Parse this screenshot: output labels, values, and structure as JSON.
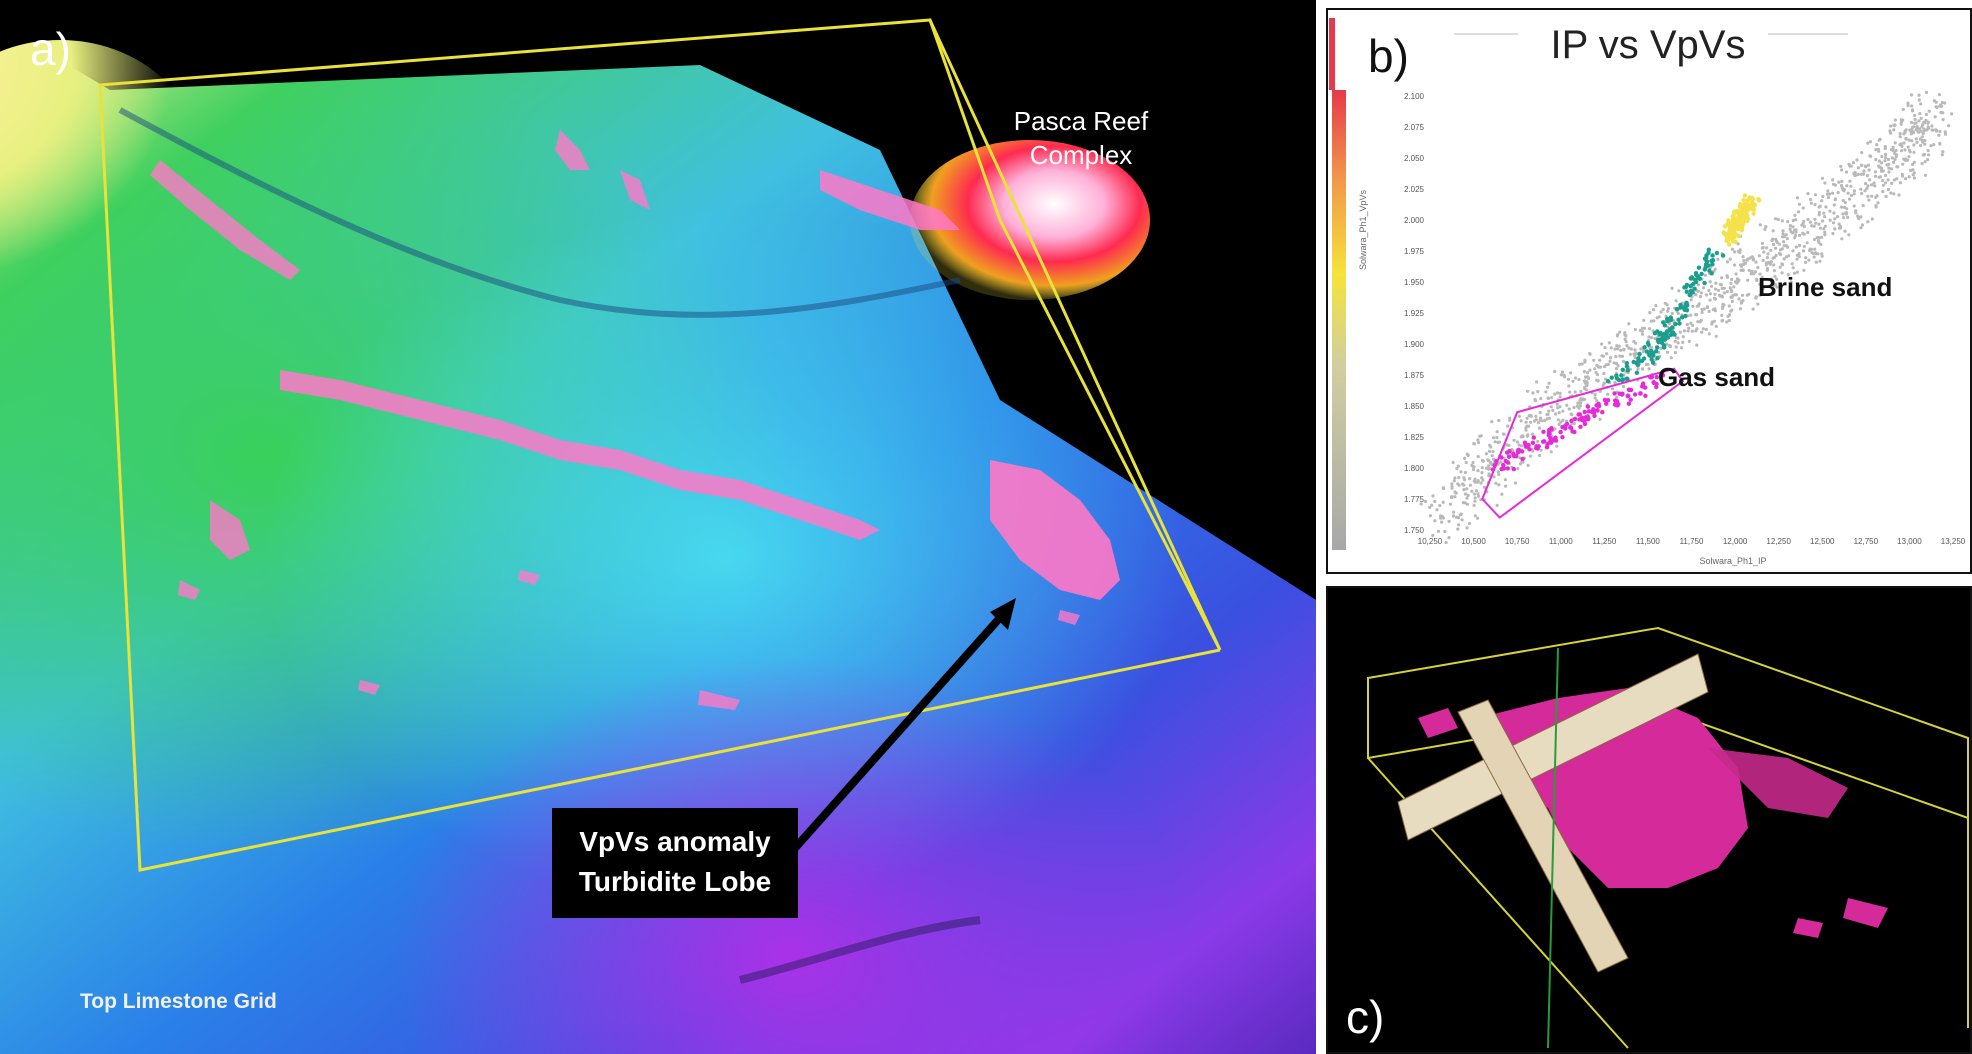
{
  "panel_a": {
    "letter": "a)",
    "reef_label_line1": "Pasca Reef",
    "reef_label_line2": "Complex",
    "anomaly_label_line1": "VpVs anomaly",
    "anomaly_label_line2": "Turbidite Lobe",
    "grid_label": "Top Limestone Grid",
    "colors": {
      "box": "#e8e23a",
      "anomaly": "#ff78c8",
      "reef": "#ff3a5a"
    }
  },
  "panel_b": {
    "letter": "b)",
    "title": "IP vs VpVs",
    "annotation_brine": "Brine sand",
    "annotation_gas": "Gas sand",
    "chart_data": {
      "type": "scatter",
      "title": "IP vs VpVs",
      "xlabel": "Solwara_Ph1_IP",
      "ylabel": "Solwara_Ph1_VpVs",
      "xlim": [
        10250,
        13250
      ],
      "ylim": [
        1.75,
        2.1
      ],
      "x_ticks": [
        "10,250",
        "10,500",
        "10,750",
        "11,000",
        "11,250",
        "11,500",
        "11,750",
        "12,000",
        "12,250",
        "12,500",
        "12,750",
        "13,000",
        "13,250"
      ],
      "y_ticks": [
        "1.750",
        "1.775",
        "1.800",
        "1.825",
        "1.850",
        "1.875",
        "1.900",
        "1.925",
        "1.950",
        "1.975",
        "2.000",
        "2.025",
        "2.050",
        "2.075",
        "2.100"
      ],
      "clusters": [
        {
          "color": "#b9b9b9",
          "points": [
            [
              10300,
              1.76
            ],
            [
              10600,
              1.8
            ],
            [
              10900,
              1.84
            ],
            [
              11200,
              1.87
            ],
            [
              11500,
              1.9
            ],
            [
              11800,
              1.93
            ],
            [
              12100,
              1.96
            ],
            [
              12400,
              1.99
            ],
            [
              12700,
              2.02
            ],
            [
              13000,
              2.06
            ],
            [
              13150,
              2.09
            ]
          ],
          "spread": 0.022
        },
        {
          "color": "#1a9e8e",
          "points": [
            [
              11300,
              1.87
            ],
            [
              11500,
              1.89
            ],
            [
              11600,
              1.91
            ],
            [
              11700,
              1.93
            ],
            [
              11800,
              1.955
            ],
            [
              11900,
              1.975
            ]
          ]
        },
        {
          "color": "#f5e24a",
          "points": [
            [
              11950,
              1.985
            ],
            [
              12000,
              1.995
            ],
            [
              12050,
              2.005
            ],
            [
              12100,
              2.015
            ]
          ]
        },
        {
          "color": "#e62ad8",
          "points": [
            [
              10650,
              1.8
            ],
            [
              10800,
              1.815
            ],
            [
              11000,
              1.83
            ],
            [
              11200,
              1.845
            ],
            [
              11400,
              1.86
            ],
            [
              11550,
              1.87
            ]
          ]
        }
      ],
      "gas_polygon": [
        [
          10550,
          1.775
        ],
        [
          10650,
          1.76
        ],
        [
          11700,
          1.87
        ],
        [
          11650,
          1.88
        ],
        [
          10750,
          1.845
        ]
      ],
      "colorbar": [
        "#e63a4a",
        "#f29a4a",
        "#f6e23a",
        "#cfcfa0",
        "#a8a8a8"
      ]
    }
  },
  "panel_c": {
    "letter": "c)",
    "colors": {
      "box": "#d6d23a",
      "body": "#d42a9a",
      "slice": "#e8dcc0"
    }
  }
}
